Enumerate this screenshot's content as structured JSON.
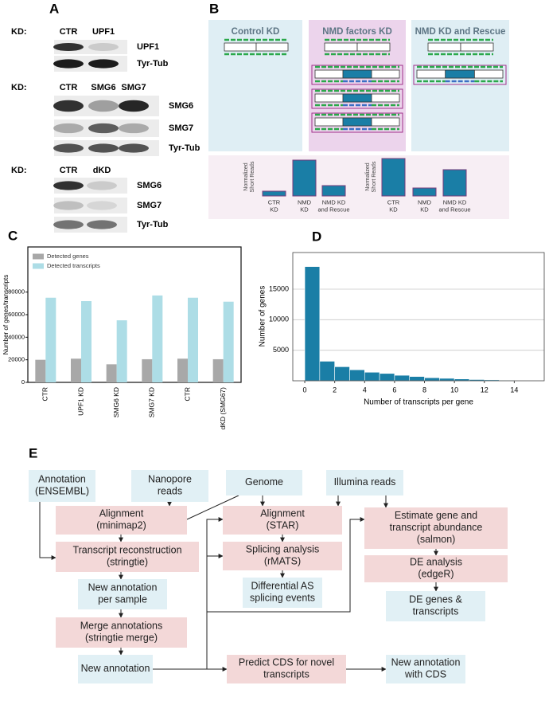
{
  "panel_labels": [
    "A",
    "B",
    "C",
    "D",
    "E"
  ],
  "western_blot": {
    "groups": [
      {
        "kd_label": "KD:",
        "lanes": [
          "CTR",
          "UPF1"
        ],
        "proteins": [
          "UPF1",
          "Tyr-Tub"
        ]
      },
      {
        "kd_label": "KD:",
        "lanes": [
          "CTR",
          "SMG6",
          "SMG7"
        ],
        "proteins": [
          "SMG6",
          "SMG7",
          "Tyr-Tub"
        ]
      },
      {
        "kd_label": "KD:",
        "lanes": [
          "CTR",
          "dKD"
        ],
        "proteins": [
          "SMG6",
          "SMG7",
          "Tyr-Tub"
        ]
      }
    ]
  },
  "schematic": {
    "conditions": [
      "Control KD",
      "NMD factors KD",
      "NMD KD and Rescue"
    ],
    "bar_groups": [
      {
        "axis_label": [
          "Normalized",
          "Short Reads"
        ],
        "bars": [
          [
            "CTR",
            "KD"
          ],
          [
            "NMD",
            "KD"
          ],
          [
            "NMD KD",
            "and Rescue"
          ]
        ]
      },
      {
        "axis_label": [
          "Normalized",
          "Short Reads"
        ],
        "bars": [
          [
            "CTR",
            "KD"
          ],
          [
            "NMD",
            "KD"
          ],
          [
            "NMD KD",
            "and Rescue"
          ]
        ]
      }
    ]
  },
  "chart_data": [
    {
      "type": "bar",
      "ylabel": "Number of genes/transcripts",
      "categories": [
        "CTR",
        "UPF1 KD",
        "SMG6 KD",
        "SMG7 KD",
        "CTR",
        "dKD (SMG67)"
      ],
      "series": [
        {
          "name": "Detected genes",
          "color": "#a8a8a8",
          "values": [
            20000,
            21000,
            16000,
            20500,
            21000,
            20500
          ]
        },
        {
          "name": "Detected transcripts",
          "color": "#addde6",
          "values": [
            75000,
            72000,
            55000,
            77000,
            75000,
            71500
          ]
        }
      ],
      "ylim": [
        0,
        120000
      ],
      "yticks": [
        0,
        20000,
        40000,
        60000,
        80000
      ],
      "legend": "upper left"
    },
    {
      "type": "histogram",
      "xlabel": "Number of transcripts per gene",
      "ylabel": "Number of genes",
      "bins": [
        0,
        1,
        2,
        3,
        4,
        5,
        6,
        7,
        8,
        9,
        10,
        11,
        12,
        13,
        14
      ],
      "counts": [
        18700,
        3200,
        2300,
        1800,
        1400,
        1200,
        900,
        700,
        500,
        400,
        300,
        200,
        150,
        100
      ],
      "color": "#1a7ea6",
      "xlim": [
        -0.8,
        16
      ],
      "ylim": [
        0,
        21000
      ],
      "xticks": [
        0,
        2,
        4,
        6,
        8,
        10,
        12,
        14
      ],
      "yticks": [
        5000,
        10000,
        15000
      ],
      "grid": true
    }
  ],
  "flowchart": {
    "nodes": [
      {
        "lines": [
          "Annotation",
          "(ENSEMBL)"
        ],
        "color": "#e1f0f5"
      },
      {
        "lines": [
          "Nanopore",
          "reads"
        ],
        "color": "#e1f0f5"
      },
      {
        "lines": [
          "Genome"
        ],
        "color": "#e1f0f5"
      },
      {
        "lines": [
          "Illumina reads"
        ],
        "color": "#e1f0f5"
      },
      {
        "lines": [
          "Alignment",
          "(minimap2)"
        ],
        "color": "#f3d8d8"
      },
      {
        "lines": [
          "Transcript reconstruction",
          "(stringtie)"
        ],
        "color": "#f3d8d8"
      },
      {
        "lines": [
          "New annotation",
          "per sample"
        ],
        "color": "#e1f0f5"
      },
      {
        "lines": [
          "Merge annotations",
          "(stringtie merge)"
        ],
        "color": "#f3d8d8"
      },
      {
        "lines": [
          "New annotation"
        ],
        "color": "#e1f0f5"
      },
      {
        "lines": [
          "Alignment",
          "(STAR)"
        ],
        "color": "#f3d8d8"
      },
      {
        "lines": [
          "Splicing analysis",
          "(rMATS)"
        ],
        "color": "#f3d8d8"
      },
      {
        "lines": [
          "Differential AS",
          "splicing events"
        ],
        "color": "#e1f0f5"
      },
      {
        "lines": [
          "Estimate gene and",
          "transcript abundance",
          "(salmon)"
        ],
        "color": "#f3d8d8"
      },
      {
        "lines": [
          "DE analysis",
          "(edgeR)"
        ],
        "color": "#f3d8d8"
      },
      {
        "lines": [
          "DE genes &",
          "transcripts"
        ],
        "color": "#e1f0f5"
      },
      {
        "lines": [
          "Predict CDS for novel",
          "transcripts"
        ],
        "color": "#f3d8d8"
      },
      {
        "lines": [
          "New annotation",
          "with CDS"
        ],
        "color": "#e1f0f5"
      }
    ]
  }
}
